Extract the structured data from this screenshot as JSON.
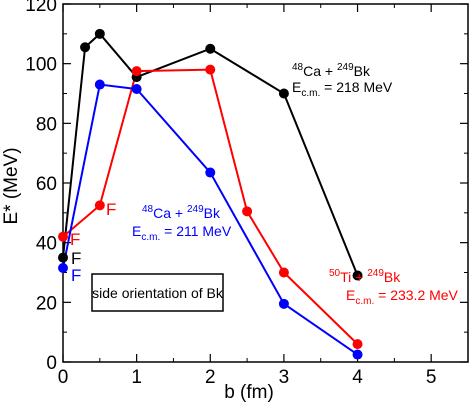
{
  "chart_data": {
    "type": "line",
    "xlabel": "b (fm)",
    "ylabel": "E* (MeV)",
    "xlim": [
      0,
      5.5
    ],
    "ylim": [
      0,
      120
    ],
    "xticks": [
      0,
      1,
      2,
      3,
      4,
      5
    ],
    "yticks": [
      0,
      20,
      40,
      60,
      80,
      100,
      120
    ],
    "grid": false,
    "series": [
      {
        "color": "#000000",
        "x": [
          0,
          0.3,
          0.5,
          1,
          2,
          3,
          4
        ],
        "y": [
          35,
          105.5,
          110,
          95.5,
          105,
          90,
          29
        ],
        "flag": "F",
        "label": {
          "pre": "48",
          "a": "Ca + ",
          "pre2": "249",
          "b": "Bk",
          "e": "E",
          "sub": "c.m.",
          "val": " = 218 MeV"
        }
      },
      {
        "color": "#ff0000",
        "x": [
          0,
          0.5,
          1,
          2,
          2.5,
          3,
          4
        ],
        "y": [
          42,
          52.5,
          97.5,
          98,
          50.5,
          30,
          6
        ],
        "flags": [
          "F",
          "F"
        ],
        "label": {
          "pre": "50",
          "a": "Ti + ",
          "pre2": "249",
          "b": "Bk",
          "e": "E",
          "sub": "c.m.",
          "val": " = 233.2 MeV"
        }
      },
      {
        "color": "#0000ff",
        "x": [
          0,
          0.5,
          1,
          2,
          3,
          4
        ],
        "y": [
          31.5,
          93,
          91.5,
          63.5,
          19.5,
          2.5
        ],
        "flag": "F",
        "label": {
          "pre": "48",
          "a": "Ca + ",
          "pre2": "249",
          "b": "Bk",
          "e": "E",
          "sub": "c.m.",
          "val": " = 211 MeV"
        }
      }
    ],
    "annotation_box": "side orientation of Bk"
  }
}
